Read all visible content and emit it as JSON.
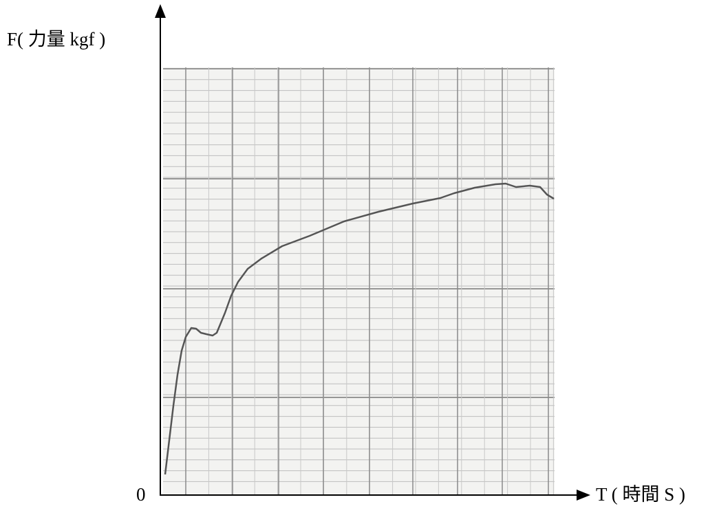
{
  "axis_labels": {
    "y": "F( 力量 kgf )",
    "x": "T ( 時間 S )"
  },
  "origin": 0
}
